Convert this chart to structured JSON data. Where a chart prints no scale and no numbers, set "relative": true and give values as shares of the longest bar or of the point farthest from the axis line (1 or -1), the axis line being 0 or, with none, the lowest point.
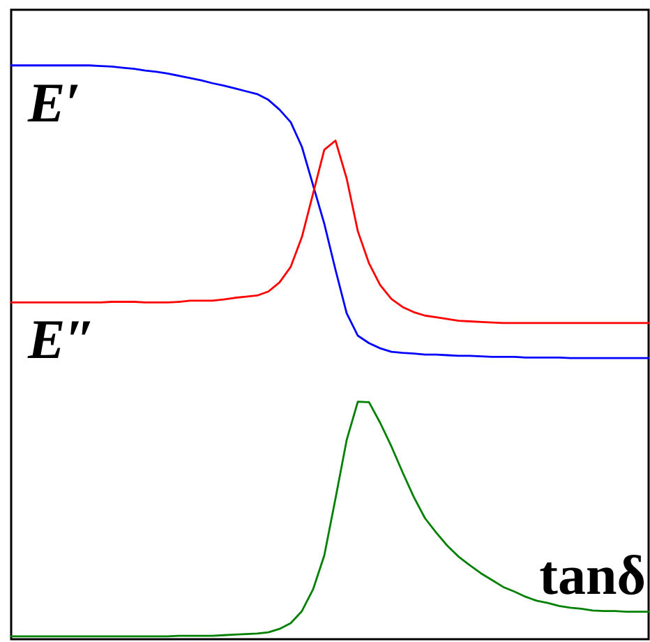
{
  "chart_data": {
    "type": "line",
    "relative": true,
    "categories": [
      null,
      null,
      null,
      null,
      null,
      null,
      null,
      null,
      null,
      null,
      null,
      null,
      null,
      null,
      null,
      null,
      null,
      null,
      null,
      null,
      null,
      null,
      null,
      null,
      null,
      null,
      null,
      null,
      null,
      null,
      null,
      null,
      null,
      null,
      null,
      null,
      null,
      null,
      null,
      null,
      null,
      null,
      null,
      null,
      null,
      null,
      null,
      null,
      null,
      null,
      null,
      null,
      null,
      null,
      null,
      null,
      null,
      null
    ],
    "series": [
      {
        "name": "E′",
        "color": "#0000ff",
        "values": [
          1.0,
          1.0,
          1.0,
          1.0,
          1.0,
          1.0,
          1.0,
          1.0,
          0.999,
          0.998,
          0.996,
          0.994,
          0.991,
          0.989,
          0.986,
          0.982,
          0.978,
          0.974,
          0.969,
          0.965,
          0.96,
          0.955,
          0.95,
          0.94,
          0.923,
          0.901,
          0.858,
          0.791,
          0.724,
          0.644,
          0.568,
          0.529,
          0.516,
          0.507,
          0.501,
          0.499,
          0.498,
          0.496,
          0.496,
          0.495,
          0.494,
          0.494,
          0.493,
          0.492,
          0.492,
          0.492,
          0.491,
          0.491,
          0.491,
          0.491,
          0.49,
          0.49,
          0.49,
          0.49,
          0.49,
          0.49,
          0.49,
          0.49
        ]
      },
      {
        "name": "E″",
        "color": "#ff0000",
        "values": [
          0.587,
          0.587,
          0.587,
          0.587,
          0.587,
          0.587,
          0.587,
          0.587,
          0.587,
          0.588,
          0.588,
          0.588,
          0.587,
          0.587,
          0.587,
          0.588,
          0.59,
          0.59,
          0.59,
          0.592,
          0.595,
          0.597,
          0.599,
          0.606,
          0.622,
          0.649,
          0.701,
          0.777,
          0.853,
          0.869,
          0.803,
          0.711,
          0.655,
          0.617,
          0.593,
          0.579,
          0.57,
          0.564,
          0.561,
          0.558,
          0.555,
          0.554,
          0.553,
          0.552,
          0.551,
          0.551,
          0.551,
          0.551,
          0.551,
          0.551,
          0.551,
          0.551,
          0.551,
          0.551,
          0.551,
          0.551,
          0.551,
          0.551
        ]
      },
      {
        "name": "tanδ",
        "color": "#008000",
        "values": [
          0.005,
          0.005,
          0.005,
          0.005,
          0.005,
          0.005,
          0.005,
          0.005,
          0.005,
          0.005,
          0.005,
          0.005,
          0.005,
          0.005,
          0.005,
          0.006,
          0.006,
          0.006,
          0.006,
          0.007,
          0.008,
          0.009,
          0.01,
          0.012,
          0.018,
          0.028,
          0.049,
          0.087,
          0.146,
          0.245,
          0.347,
          0.414,
          0.413,
          0.377,
          0.336,
          0.291,
          0.248,
          0.211,
          0.186,
          0.163,
          0.144,
          0.129,
          0.115,
          0.103,
          0.091,
          0.083,
          0.074,
          0.067,
          0.063,
          0.058,
          0.055,
          0.053,
          0.05,
          0.049,
          0.049,
          0.048,
          0.048,
          0.048
        ]
      }
    ]
  }
}
